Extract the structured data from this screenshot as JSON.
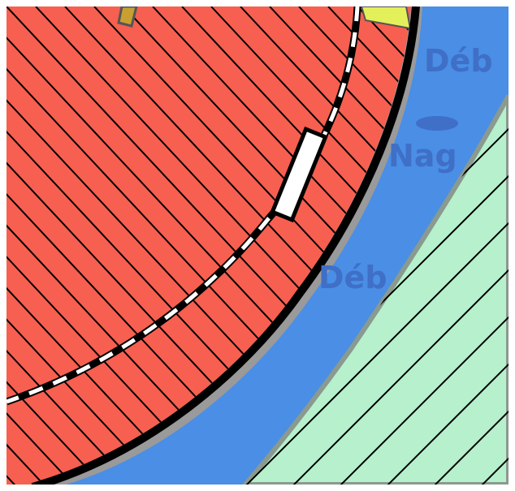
{
  "labels": [
    "Déb",
    "Nag",
    "Déb"
  ]
}
